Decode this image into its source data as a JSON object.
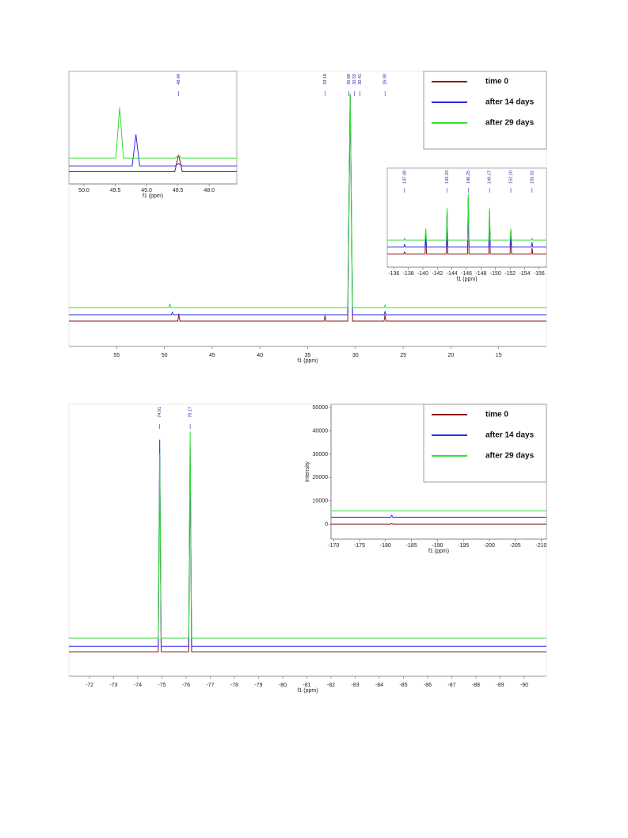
{
  "chart_data": [
    {
      "type": "line",
      "xlabel": "f1 (ppm)",
      "xlim": [
        60,
        10
      ],
      "xticks": [
        55,
        50,
        45,
        40,
        35,
        30,
        25,
        20,
        15
      ],
      "ylim": [
        0,
        320
      ],
      "legend": "upper right",
      "peaks": [
        {
          "value": 48.49,
          "label": "48.49"
        },
        {
          "value": 33.18,
          "label": "33.18"
        },
        {
          "value": 30.68,
          "label": "30.68"
        },
        {
          "value": 30.55,
          "label": "30.55"
        },
        {
          "value": 30.41,
          "label": "30.41"
        },
        {
          "value": 26.9,
          "label": "26.90"
        }
      ],
      "x": [
        60,
        49.53,
        49.43,
        49.33,
        49.27,
        49.17,
        49.07,
        48.6,
        48.49,
        48.38,
        33.28,
        33.18,
        33.08,
        30.8,
        30.55,
        30.3,
        27.0,
        26.9,
        26.8,
        10
      ],
      "series": [
        {
          "name": "time 0",
          "color": "#8b1515",
          "values": [
            0,
            0,
            0,
            0,
            0,
            0,
            0,
            0,
            8,
            0,
            0,
            7,
            0,
            0,
            285,
            0,
            0,
            8,
            0,
            0
          ]
        },
        {
          "name": "after 14 days",
          "color": "#2a2aee",
          "values": [
            8,
            8,
            8,
            8,
            8,
            11,
            8,
            8,
            9,
            8,
            8,
            8,
            8,
            8,
            286,
            8,
            8,
            12,
            8,
            8
          ]
        },
        {
          "name": "after 29 days",
          "color": "#33dd33",
          "values": [
            17,
            17,
            22,
            17,
            17,
            17,
            17,
            17,
            17,
            17,
            17,
            17,
            17,
            17,
            287,
            17,
            17,
            20,
            17,
            17
          ]
        }
      ]
    },
    {
      "type": "line",
      "xlabel": "f1 (ppm)",
      "xlim": [
        50.24,
        47.56
      ],
      "xticks": [
        {
          "value": 50,
          "label": "50.0"
        },
        {
          "value": 49.5,
          "label": "49.5"
        },
        {
          "value": 49,
          "label": "49.0"
        },
        {
          "value": 48.5,
          "label": "48.5"
        },
        {
          "value": 48,
          "label": "48.0"
        }
      ],
      "ylim": [
        0,
        100
      ],
      "peaks": [
        {
          "value": 48.49,
          "label": "48.49"
        }
      ],
      "x": [
        50.24,
        49.49,
        49.43,
        49.37,
        49.23,
        49.17,
        49.11,
        48.55,
        48.49,
        48.43,
        47.56
      ],
      "series": [
        {
          "color": "#8b1515",
          "values": [
            11,
            11,
            11,
            11,
            11,
            11,
            11,
            11,
            26,
            11,
            11
          ]
        },
        {
          "color": "#2a2aee",
          "values": [
            16,
            16,
            16,
            16,
            16,
            44,
            16,
            16,
            18,
            16,
            16
          ]
        },
        {
          "color": "#33dd33",
          "values": [
            23,
            23,
            68,
            23,
            23,
            23,
            23,
            23,
            25,
            23,
            23
          ]
        }
      ]
    },
    {
      "type": "line",
      "xlabel": "f1 (ppm)",
      "xlim": [
        -135.1,
        -157
      ],
      "xticks": [
        -136,
        -138,
        -140,
        -142,
        -144,
        -146,
        -148,
        -150,
        -152,
        -154,
        -156
      ],
      "ylim": [
        0,
        100
      ],
      "peaks": [
        {
          "value": -137.48,
          "label": "137.48"
        },
        {
          "value": -143.33,
          "label": "143.33"
        },
        {
          "value": -146.25,
          "label": "146.25"
        },
        {
          "value": -149.17,
          "label": "149.17"
        },
        {
          "value": -152.1,
          "label": "152.10"
        },
        {
          "value": -155.02,
          "label": "155.02"
        }
      ],
      "x": [
        -135.1,
        -137.38,
        -137.48,
        -137.58,
        -140.3,
        -140.4,
        -140.5,
        -143.23,
        -143.33,
        -143.43,
        -146.15,
        -146.25,
        -146.35,
        -149.07,
        -149.17,
        -149.27,
        -152.0,
        -152.1,
        -152.2,
        -154.92,
        -155.02,
        -155.12,
        -157
      ],
      "series": [
        {
          "color": "#8b1515",
          "values": [
            12,
            12,
            14,
            12,
            12,
            35,
            12,
            12,
            56,
            12,
            12,
            69,
            12,
            12,
            56,
            12,
            12,
            35,
            12,
            12,
            18,
            12,
            12
          ]
        },
        {
          "color": "#2a2aee",
          "values": [
            19,
            19,
            22,
            19,
            19,
            36,
            19,
            19,
            57,
            19,
            19,
            70,
            19,
            19,
            57,
            19,
            19,
            36,
            19,
            19,
            24,
            19,
            19
          ]
        },
        {
          "color": "#33dd33",
          "values": [
            26,
            26,
            28,
            26,
            26,
            38,
            26,
            26,
            59,
            26,
            26,
            73,
            26,
            26,
            59,
            26,
            26,
            38,
            26,
            26,
            28,
            26,
            26
          ]
        }
      ]
    },
    {
      "type": "line",
      "xlabel": "f1 (ppm)",
      "xlim": [
        -71.15,
        -90.92
      ],
      "xticks": [
        -72,
        -73,
        -74,
        -75,
        -76,
        -77,
        -78,
        -79,
        -80,
        -81,
        -82,
        -83,
        -84,
        -85,
        -86,
        -87,
        -88,
        -89,
        -90
      ],
      "ylim": [
        0,
        100
      ],
      "legend": "upper right",
      "peaks": [
        {
          "value": -74.91,
          "label": "74.91"
        },
        {
          "value": -76.17,
          "label": "76.17"
        }
      ],
      "x": [
        -71.15,
        -74.85,
        -74.91,
        -74.97,
        -76.11,
        -76.17,
        -76.23,
        -90.92
      ],
      "series": [
        {
          "name": "time 0",
          "color": "#8b1515",
          "values": [
            9,
            9,
            80,
            9,
            9,
            85,
            9,
            9
          ]
        },
        {
          "name": "after 14 days",
          "color": "#2a2aee",
          "values": [
            11,
            11,
            87,
            11,
            11,
            84,
            11,
            11
          ]
        },
        {
          "name": "after 29 days",
          "color": "#33dd33",
          "values": [
            14,
            14,
            82,
            14,
            14,
            90,
            14,
            14
          ]
        }
      ]
    },
    {
      "type": "line",
      "xlabel": "f1 (ppm)",
      "ylabel": "Intensity",
      "xlim": [
        -169.5,
        -211
      ],
      "xticks": [
        -170,
        -175,
        -180,
        -185,
        -190,
        -195,
        -200,
        -205,
        -210
      ],
      "ylim": [
        -6400,
        51400
      ],
      "yticks": [
        0,
        10000,
        20000,
        30000,
        40000,
        50000
      ],
      "x": [
        -169.5,
        -181.0,
        -181.2,
        -181.4,
        -211
      ],
      "series": [
        {
          "color": "#8b1515",
          "values": [
            0,
            0,
            300,
            0,
            0
          ]
        },
        {
          "color": "#2a2aee",
          "values": [
            3000,
            3000,
            3800,
            3000,
            3000
          ]
        },
        {
          "color": "#33dd33",
          "values": [
            5700,
            5700,
            5700,
            5700,
            5700
          ]
        }
      ]
    }
  ]
}
